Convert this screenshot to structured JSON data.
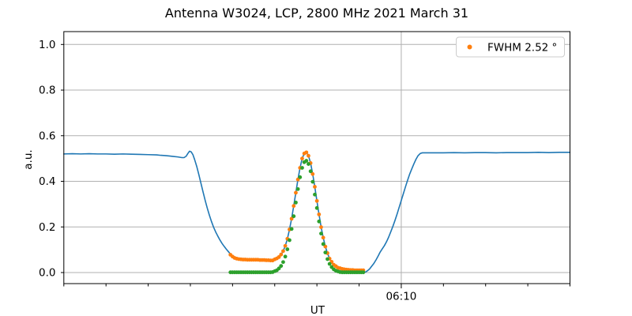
{
  "chart_data": {
    "type": "line+scatter",
    "title": "Antenna W3024, LCP, 2800 MHz 2021 March 31",
    "xlabel": "UT",
    "ylabel": "a.u.",
    "x_axis": {
      "unit": "minutes-after-midnight-UT",
      "range": [
        290,
        410
      ],
      "minor_tick_interval_minutes": 10,
      "major_ticks": [
        {
          "minutes": 370,
          "label": "06:10"
        }
      ]
    },
    "y_axis": {
      "range": [
        -0.05,
        1.055
      ],
      "ticks": [
        0.0,
        0.2,
        0.4,
        0.6,
        0.8,
        1.0
      ],
      "tick_labels": [
        "0.0",
        "0.2",
        "0.4",
        "0.6",
        "0.8",
        "1.0"
      ]
    },
    "grid": {
      "show": true,
      "color": "#b0b0b0",
      "vertical_gridlines_at_major_ticks_only": true
    },
    "legend": {
      "position": "upper-right",
      "entries": [
        {
          "label": "FWHM 2.52 °",
          "color": "#ff7f0e",
          "marker": "dot"
        }
      ]
    },
    "series": [
      {
        "name": "raw-signal",
        "type": "line",
        "color": "#1f77b4",
        "line_width": 1.6,
        "points": [
          [
            290,
            0.52
          ],
          [
            292,
            0.521
          ],
          [
            294,
            0.52
          ],
          [
            296,
            0.521
          ],
          [
            298,
            0.52
          ],
          [
            300,
            0.52
          ],
          [
            302,
            0.519
          ],
          [
            304,
            0.52
          ],
          [
            306,
            0.519
          ],
          [
            308,
            0.518
          ],
          [
            310,
            0.517
          ],
          [
            312,
            0.516
          ],
          [
            313,
            0.514
          ],
          [
            314,
            0.513
          ],
          [
            315,
            0.511
          ],
          [
            316,
            0.509
          ],
          [
            317,
            0.507
          ],
          [
            318,
            0.504
          ],
          [
            318.5,
            0.504
          ],
          [
            319,
            0.51
          ],
          [
            319.4,
            0.522
          ],
          [
            319.8,
            0.532
          ],
          [
            320.2,
            0.529
          ],
          [
            320.6,
            0.517
          ],
          [
            321,
            0.496
          ],
          [
            321.5,
            0.466
          ],
          [
            322,
            0.43
          ],
          [
            322.5,
            0.392
          ],
          [
            323,
            0.354
          ],
          [
            323.5,
            0.317
          ],
          [
            324,
            0.283
          ],
          [
            324.5,
            0.252
          ],
          [
            325,
            0.224
          ],
          [
            325.5,
            0.199
          ],
          [
            326,
            0.178
          ],
          [
            326.5,
            0.16
          ],
          [
            327,
            0.143
          ],
          [
            327.5,
            0.128
          ],
          [
            328,
            0.115
          ],
          [
            328.5,
            0.103
          ],
          [
            329,
            0.092
          ],
          [
            329.5,
            0.081
          ],
          [
            330,
            0.07
          ],
          [
            330.5,
            0.063
          ],
          [
            331,
            0.06
          ],
          [
            331.5,
            0.058
          ],
          [
            332,
            0.057
          ],
          [
            333,
            0.056
          ],
          [
            334,
            0.056
          ],
          [
            335,
            0.056
          ],
          [
            336,
            0.056
          ],
          [
            337,
            0.055
          ],
          [
            338,
            0.054
          ],
          [
            339,
            0.053
          ],
          [
            340,
            0.058
          ],
          [
            340.5,
            0.062
          ],
          [
            341,
            0.068
          ],
          [
            341.5,
            0.079
          ],
          [
            342,
            0.094
          ],
          [
            342.5,
            0.117
          ],
          [
            343,
            0.148
          ],
          [
            343.5,
            0.189
          ],
          [
            344,
            0.236
          ],
          [
            344.5,
            0.292
          ],
          [
            345,
            0.35
          ],
          [
            345.5,
            0.408
          ],
          [
            346,
            0.459
          ],
          [
            346.5,
            0.5
          ],
          [
            347,
            0.522
          ],
          [
            347.5,
            0.527
          ],
          [
            348,
            0.512
          ],
          [
            348.5,
            0.48
          ],
          [
            349,
            0.432
          ],
          [
            349.5,
            0.376
          ],
          [
            350,
            0.314
          ],
          [
            350.5,
            0.255
          ],
          [
            351,
            0.199
          ],
          [
            351.5,
            0.153
          ],
          [
            352,
            0.114
          ],
          [
            352.5,
            0.085
          ],
          [
            353,
            0.061
          ],
          [
            353.5,
            0.045
          ],
          [
            354,
            0.032
          ],
          [
            354.5,
            0.024
          ],
          [
            355,
            0.018
          ],
          [
            355.5,
            0.015
          ],
          [
            356,
            0.012
          ],
          [
            356.5,
            0.01
          ],
          [
            357,
            0.008
          ],
          [
            357.5,
            0.007
          ],
          [
            358,
            0.006
          ],
          [
            358.5,
            0.005
          ],
          [
            359,
            0.005
          ],
          [
            359.5,
            0.004
          ],
          [
            360,
            0.003
          ],
          [
            360.5,
            0.002
          ],
          [
            361,
            0.001
          ],
          [
            361.5,
            0.002
          ],
          [
            362,
            0.008
          ],
          [
            362.5,
            0.016
          ],
          [
            363,
            0.028
          ],
          [
            363.5,
            0.04
          ],
          [
            364,
            0.055
          ],
          [
            364.5,
            0.072
          ],
          [
            365,
            0.09
          ],
          [
            365.5,
            0.104
          ],
          [
            366,
            0.118
          ],
          [
            366.5,
            0.135
          ],
          [
            367,
            0.155
          ],
          [
            367.5,
            0.178
          ],
          [
            368,
            0.202
          ],
          [
            368.5,
            0.228
          ],
          [
            369,
            0.256
          ],
          [
            369.5,
            0.286
          ],
          [
            370,
            0.316
          ],
          [
            370.5,
            0.346
          ],
          [
            371,
            0.376
          ],
          [
            371.5,
            0.405
          ],
          [
            372,
            0.432
          ],
          [
            372.5,
            0.455
          ],
          [
            373,
            0.477
          ],
          [
            373.5,
            0.497
          ],
          [
            374,
            0.513
          ],
          [
            374.5,
            0.522
          ],
          [
            375,
            0.525
          ],
          [
            377.5,
            0.525
          ],
          [
            380,
            0.525
          ],
          [
            382.5,
            0.526
          ],
          [
            385,
            0.525
          ],
          [
            387.5,
            0.526
          ],
          [
            390,
            0.526
          ],
          [
            392.5,
            0.525
          ],
          [
            395,
            0.526
          ],
          [
            397.5,
            0.526
          ],
          [
            400,
            0.526
          ],
          [
            402.5,
            0.527
          ],
          [
            405,
            0.526
          ],
          [
            407.5,
            0.527
          ],
          [
            410,
            0.527
          ]
        ]
      },
      {
        "name": "gaussian-fit-with-background",
        "type": "scatter",
        "color": "#ff7f0e",
        "marker_radius": 2.4,
        "points": [
          [
            329.5,
            0.078
          ],
          [
            330,
            0.07
          ],
          [
            330.5,
            0.064
          ],
          [
            331,
            0.061
          ],
          [
            331.5,
            0.059
          ],
          [
            332,
            0.058
          ],
          [
            332.5,
            0.057
          ],
          [
            333,
            0.057
          ],
          [
            333.5,
            0.056
          ],
          [
            334,
            0.056
          ],
          [
            334.5,
            0.056
          ],
          [
            335,
            0.056
          ],
          [
            335.5,
            0.056
          ],
          [
            336,
            0.056
          ],
          [
            336.5,
            0.055
          ],
          [
            337,
            0.055
          ],
          [
            337.5,
            0.055
          ],
          [
            338,
            0.054
          ],
          [
            338.5,
            0.054
          ],
          [
            339,
            0.053
          ],
          [
            339.5,
            0.053
          ],
          [
            340,
            0.058
          ],
          [
            340.5,
            0.062
          ],
          [
            341,
            0.068
          ],
          [
            341.5,
            0.079
          ],
          [
            342,
            0.094
          ],
          [
            342.5,
            0.117
          ],
          [
            343,
            0.148
          ],
          [
            343.5,
            0.189
          ],
          [
            344,
            0.236
          ],
          [
            344.5,
            0.292
          ],
          [
            345,
            0.35
          ],
          [
            345.5,
            0.408
          ],
          [
            346,
            0.459
          ],
          [
            346.5,
            0.5
          ],
          [
            347,
            0.522
          ],
          [
            347.5,
            0.527
          ],
          [
            348,
            0.512
          ],
          [
            348.5,
            0.48
          ],
          [
            349,
            0.432
          ],
          [
            349.5,
            0.376
          ],
          [
            350,
            0.314
          ],
          [
            350.5,
            0.255
          ],
          [
            351,
            0.199
          ],
          [
            351.5,
            0.153
          ],
          [
            352,
            0.114
          ],
          [
            352.5,
            0.085
          ],
          [
            353,
            0.061
          ],
          [
            353.5,
            0.047
          ],
          [
            354,
            0.034
          ],
          [
            354.5,
            0.028
          ],
          [
            355,
            0.021
          ],
          [
            355.5,
            0.019
          ],
          [
            356,
            0.016
          ],
          [
            356.5,
            0.014
          ],
          [
            357,
            0.013
          ],
          [
            357.5,
            0.012
          ],
          [
            358,
            0.011
          ],
          [
            358.5,
            0.011
          ],
          [
            359,
            0.01
          ],
          [
            359.5,
            0.01
          ],
          [
            360,
            0.01
          ],
          [
            360.5,
            0.01
          ],
          [
            361,
            0.01
          ]
        ]
      },
      {
        "name": "background-subtracted-fit",
        "type": "scatter",
        "color": "#2ca02c",
        "marker_radius": 2.4,
        "points": [
          [
            329.5,
            0.001
          ],
          [
            330,
            0.001
          ],
          [
            330.5,
            0.001
          ],
          [
            331,
            0.001
          ],
          [
            331.5,
            0.001
          ],
          [
            332,
            0.001
          ],
          [
            332.5,
            0.001
          ],
          [
            333,
            0.001
          ],
          [
            333.5,
            0.001
          ],
          [
            334,
            0.001
          ],
          [
            334.5,
            0.001
          ],
          [
            335,
            0.001
          ],
          [
            335.5,
            0.001
          ],
          [
            336,
            0.001
          ],
          [
            336.5,
            0.001
          ],
          [
            337,
            0.001
          ],
          [
            337.5,
            0.001
          ],
          [
            338,
            0.001
          ],
          [
            338.5,
            0.001
          ],
          [
            339,
            0.001
          ],
          [
            339.5,
            0.002
          ],
          [
            340,
            0.006
          ],
          [
            340.5,
            0.01
          ],
          [
            341,
            0.018
          ],
          [
            341.5,
            0.029
          ],
          [
            342,
            0.046
          ],
          [
            342.5,
            0.07
          ],
          [
            343,
            0.102
          ],
          [
            343.5,
            0.142
          ],
          [
            344,
            0.191
          ],
          [
            344.5,
            0.247
          ],
          [
            345,
            0.307
          ],
          [
            345.5,
            0.366
          ],
          [
            346,
            0.418
          ],
          [
            346.5,
            0.459
          ],
          [
            347,
            0.484
          ],
          [
            347.5,
            0.49
          ],
          [
            348,
            0.476
          ],
          [
            348.5,
            0.444
          ],
          [
            349,
            0.398
          ],
          [
            349.5,
            0.342
          ],
          [
            350,
            0.283
          ],
          [
            350.5,
            0.224
          ],
          [
            351,
            0.171
          ],
          [
            351.5,
            0.125
          ],
          [
            352,
            0.088
          ],
          [
            352.5,
            0.059
          ],
          [
            353,
            0.038
          ],
          [
            353.5,
            0.024
          ],
          [
            354,
            0.014
          ],
          [
            354.5,
            0.008
          ],
          [
            355,
            0.005
          ],
          [
            355.5,
            0.002
          ],
          [
            356,
            0.001
          ],
          [
            356.5,
            0.001
          ],
          [
            357,
            0.001
          ],
          [
            357.5,
            0.001
          ],
          [
            358,
            0.001
          ],
          [
            358.5,
            0.001
          ],
          [
            359,
            0.001
          ],
          [
            359.5,
            0.001
          ],
          [
            360,
            0.001
          ],
          [
            360.5,
            0.001
          ],
          [
            361,
            0.001
          ]
        ]
      }
    ],
    "colors": {
      "axes": "#000000",
      "grid": "#b0b0b0",
      "background": "#ffffff",
      "legend_border": "#cccccc"
    }
  }
}
